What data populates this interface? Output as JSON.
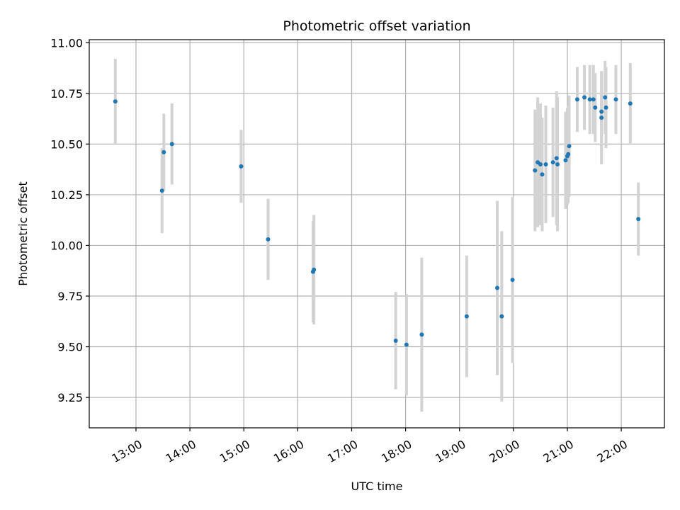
{
  "chart_data": {
    "type": "scatter",
    "title": "Photometric offset variation",
    "xlabel": "UTC time",
    "ylabel": "Photometric offset",
    "x_ticks": [
      "13:00",
      "14:00",
      "15:00",
      "16:00",
      "17:00",
      "18:00",
      "19:00",
      "20:00",
      "21:00",
      "22:00"
    ],
    "y_ticks": [
      "9.25",
      "9.50",
      "9.75",
      "10.00",
      "10.25",
      "10.50",
      "10.75",
      "11.00"
    ],
    "xlim": [
      "12:08",
      "22:48"
    ],
    "ylim": [
      9.1,
      11.015
    ],
    "grid": true,
    "colors": {
      "points": "#1f77b4",
      "error_bars": "#d3d3d3",
      "grid": "#b0b0b0"
    },
    "points": [
      {
        "x": "12:37",
        "y": 10.71,
        "err": 0.21
      },
      {
        "x": "13:29",
        "y": 10.27,
        "err": 0.21
      },
      {
        "x": "13:31",
        "y": 10.46,
        "err": 0.19
      },
      {
        "x": "13:40",
        "y": 10.5,
        "err": 0.2
      },
      {
        "x": "14:57",
        "y": 10.39,
        "err": 0.18
      },
      {
        "x": "15:27",
        "y": 10.03,
        "err": 0.2
      },
      {
        "x": "16:17",
        "y": 9.87,
        "err": 0.25
      },
      {
        "x": "16:18",
        "y": 9.88,
        "err": 0.27
      },
      {
        "x": "17:49",
        "y": 9.53,
        "err": 0.24
      },
      {
        "x": "18:01",
        "y": 9.51,
        "err": 0.25
      },
      {
        "x": "18:18",
        "y": 9.56,
        "err": 0.38
      },
      {
        "x": "19:08",
        "y": 9.65,
        "err": 0.3
      },
      {
        "x": "19:42",
        "y": 9.79,
        "err": 0.43
      },
      {
        "x": "19:47",
        "y": 9.65,
        "err": 0.42
      },
      {
        "x": "19:59",
        "y": 9.83,
        "err": 0.41
      },
      {
        "x": "20:24",
        "y": 10.37,
        "err": 0.3
      },
      {
        "x": "20:27",
        "y": 10.41,
        "err": 0.32
      },
      {
        "x": "20:30",
        "y": 10.4,
        "err": 0.3
      },
      {
        "x": "20:32",
        "y": 10.35,
        "err": 0.28
      },
      {
        "x": "20:36",
        "y": 10.4,
        "err": 0.29
      },
      {
        "x": "20:44",
        "y": 10.41,
        "err": 0.27
      },
      {
        "x": "20:48",
        "y": 10.43,
        "err": 0.33
      },
      {
        "x": "20:49",
        "y": 10.4,
        "err": 0.33
      },
      {
        "x": "20:58",
        "y": 10.42,
        "err": 0.24
      },
      {
        "x": "21:00",
        "y": 10.44,
        "err": 0.24
      },
      {
        "x": "21:01",
        "y": 10.45,
        "err": 0.24
      },
      {
        "x": "21:02",
        "y": 10.49,
        "err": 0.25
      },
      {
        "x": "21:11",
        "y": 10.72,
        "err": 0.16
      },
      {
        "x": "21:19",
        "y": 10.73,
        "err": 0.16
      },
      {
        "x": "21:25",
        "y": 10.72,
        "err": 0.17
      },
      {
        "x": "21:29",
        "y": 10.72,
        "err": 0.17
      },
      {
        "x": "21:31",
        "y": 10.68,
        "err": 0.17
      },
      {
        "x": "21:38",
        "y": 10.66,
        "err": 0.2
      },
      {
        "x": "21:38",
        "y": 10.63,
        "err": 0.23
      },
      {
        "x": "21:42",
        "y": 10.73,
        "err": 0.18
      },
      {
        "x": "21:43",
        "y": 10.68,
        "err": 0.2
      },
      {
        "x": "21:54",
        "y": 10.72,
        "err": 0.17
      },
      {
        "x": "22:10",
        "y": 10.7,
        "err": 0.2
      },
      {
        "x": "22:19",
        "y": 10.13,
        "err": 0.18
      }
    ]
  }
}
